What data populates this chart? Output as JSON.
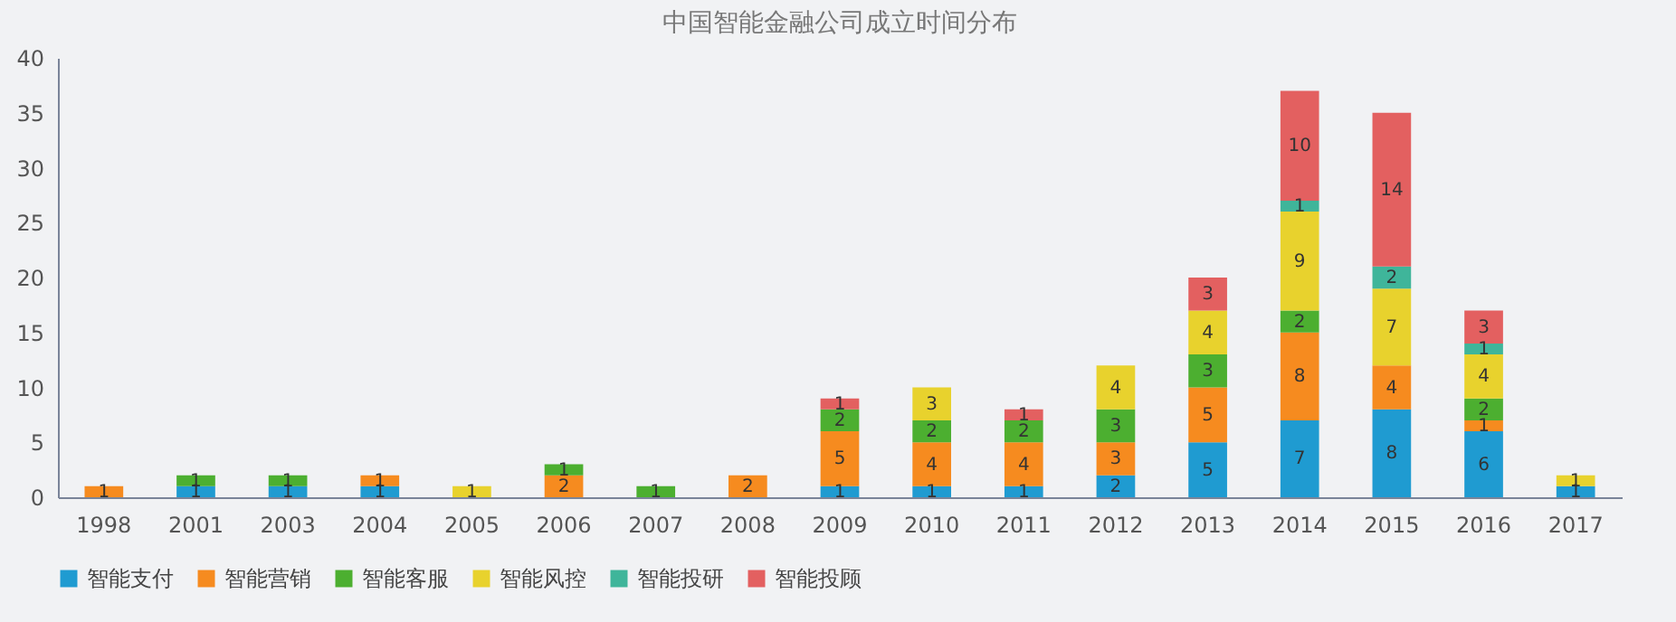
{
  "chart_data": {
    "type": "bar",
    "title": "中国智能金融公司成立时间分布",
    "stacked": true,
    "data_labels": true,
    "legend": "bottom",
    "grid": false,
    "categories": [
      "1998",
      "2001",
      "2003",
      "2004",
      "2005",
      "2006",
      "2007",
      "2008",
      "2009",
      "2010",
      "2011",
      "2012",
      "2013",
      "2014",
      "2015",
      "2016",
      "2017"
    ],
    "ylim": [
      0,
      40
    ],
    "yticks": [
      0,
      5,
      10,
      15,
      20,
      25,
      30,
      35,
      40
    ],
    "series": [
      {
        "name": "智能支付",
        "color": "#1f9bd1",
        "values": [
          null,
          1,
          1,
          1,
          null,
          null,
          null,
          null,
          1,
          1,
          1,
          2,
          5,
          7,
          8,
          6,
          1
        ]
      },
      {
        "name": "智能营销",
        "color": "#f68b1f",
        "values": [
          1,
          null,
          null,
          1,
          null,
          2,
          null,
          2,
          5,
          4,
          4,
          3,
          5,
          8,
          4,
          1,
          null
        ]
      },
      {
        "name": "智能客服",
        "color": "#4caf30",
        "values": [
          null,
          1,
          1,
          null,
          null,
          1,
          1,
          null,
          2,
          2,
          2,
          3,
          3,
          2,
          null,
          2,
          null
        ]
      },
      {
        "name": "智能风控",
        "color": "#e8d22d",
        "values": [
          null,
          null,
          null,
          null,
          1,
          null,
          null,
          null,
          null,
          3,
          null,
          4,
          4,
          9,
          7,
          4,
          1
        ]
      },
      {
        "name": "智能投研",
        "color": "#3fb59a",
        "values": [
          null,
          null,
          null,
          null,
          null,
          null,
          null,
          null,
          null,
          null,
          null,
          null,
          null,
          1,
          2,
          1,
          null
        ]
      },
      {
        "name": "智能投顾",
        "color": "#e36060",
        "values": [
          null,
          null,
          null,
          null,
          null,
          null,
          null,
          null,
          1,
          null,
          1,
          null,
          3,
          10,
          14,
          3,
          null
        ]
      }
    ]
  }
}
